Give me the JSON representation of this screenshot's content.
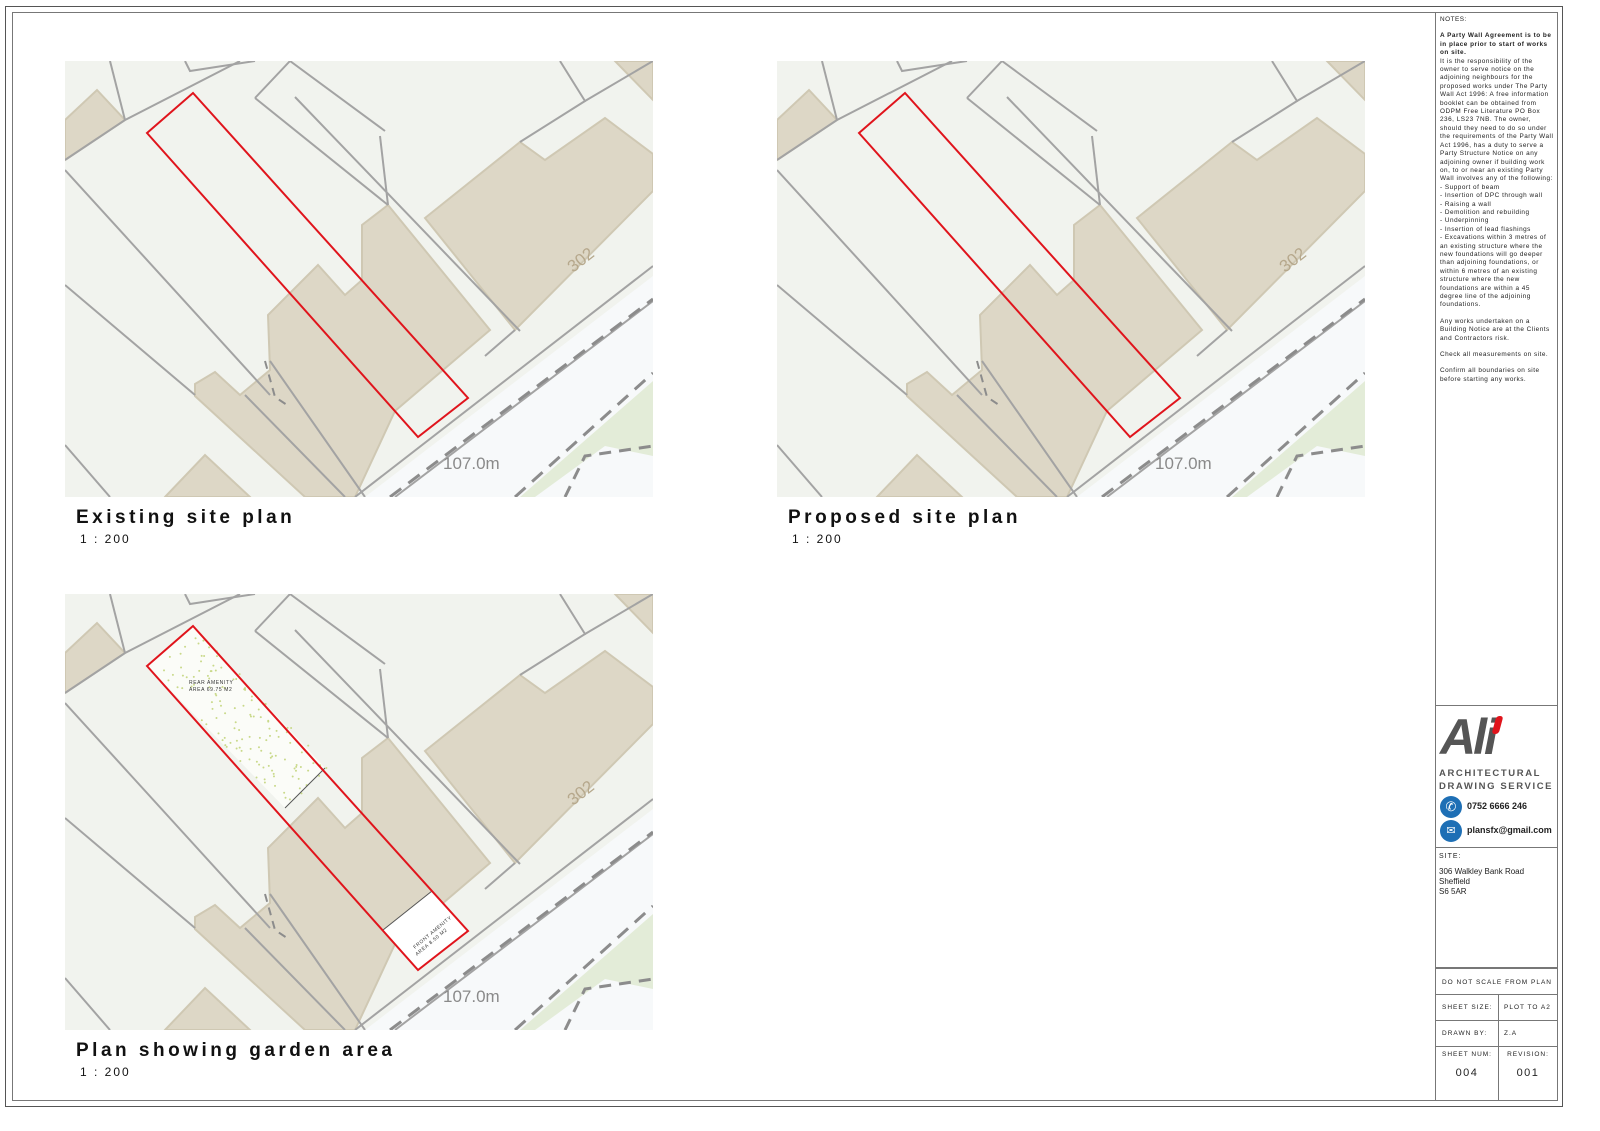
{
  "plans": [
    {
      "title": "Existing site plan",
      "scale": "1 : 200"
    },
    {
      "title": "Proposed site plan",
      "scale": "1 : 200"
    },
    {
      "title": "Plan showing garden area",
      "scale": "1 : 200"
    }
  ],
  "map_labels": {
    "building_number": "302",
    "elevation": "107.0m"
  },
  "garden_labels": {
    "rear_line1": "REAR AMENITY",
    "rear_line2": "AREA 69.75 M2",
    "front_line1": "FRONT AMENITY",
    "front_line2": "AREA 8.50 M2"
  },
  "colors": {
    "boundary": "#e0141c",
    "building": "#ddd7c6",
    "ground": "#f1f3ee",
    "road": "#f7f9fa",
    "line": "#a3a3a3",
    "grass": "#e3ecd8",
    "brand_blue": "#1e6fb5",
    "brand_red": "#e0141c"
  },
  "notes": {
    "heading": "NOTES:",
    "bold": "A Party Wall Agreement is to be in place prior to start of works on site.",
    "body": "It is the responsibility of the owner to serve notice on the adjoining neighbours for the proposed works under The Party Wall Act 1996: A free information booklet can be obtained from ODPM Free Literature PO Box 236, LS23 7NB. The owner, should they need to do so under the requirements of the Party Wall Act 1996, has a duty to serve a Party Structure Notice on any adjoining owner if building work on, to or near an existing Party Wall involves any of the following:",
    "items": [
      "- Support of beam",
      "- Insertion of DPC through wall",
      "- Raising a wall",
      "- Demolition and rebuilding",
      "- Underpinning",
      "- Insertion of lead flashings",
      "- Excavations within 3 metres of an existing structure where the new foundations will go deeper than adjoining foundations, or within 6 metres of an existing structure where the new foundations are within a 45 degree line of the adjoining foundations."
    ],
    "p2": "Any works undertaken on a Building Notice are at the Clients and Contractors risk.",
    "p3": "Check all measurements on site.",
    "p4": "Confirm all boundaries on site before starting any works."
  },
  "brand": {
    "logo": "Ali",
    "line1": "ARCHITECTURAL",
    "line2": "DRAWING SERVICE",
    "phone": "0752 6666 246",
    "email": "plansfx@gmail.com",
    "phone_icon": "phone-icon",
    "email_icon": "envelope-icon"
  },
  "site": {
    "label": "SITE:",
    "line1": "306 Walkley Bank Road",
    "line2": "Sheffield",
    "line3": "S6 5AR"
  },
  "title_block": {
    "do_not_scale": "DO NOT SCALE FROM PLAN",
    "sheet_size_label": "SHEET SIZE:",
    "sheet_size": "PLOT TO A2",
    "drawn_by_label": "DRAWN BY:",
    "drawn_by": "Z.A",
    "sheet_num_label": "SHEET NUM:",
    "sheet_num": "004",
    "revision_label": "REVISION:",
    "revision": "001"
  }
}
